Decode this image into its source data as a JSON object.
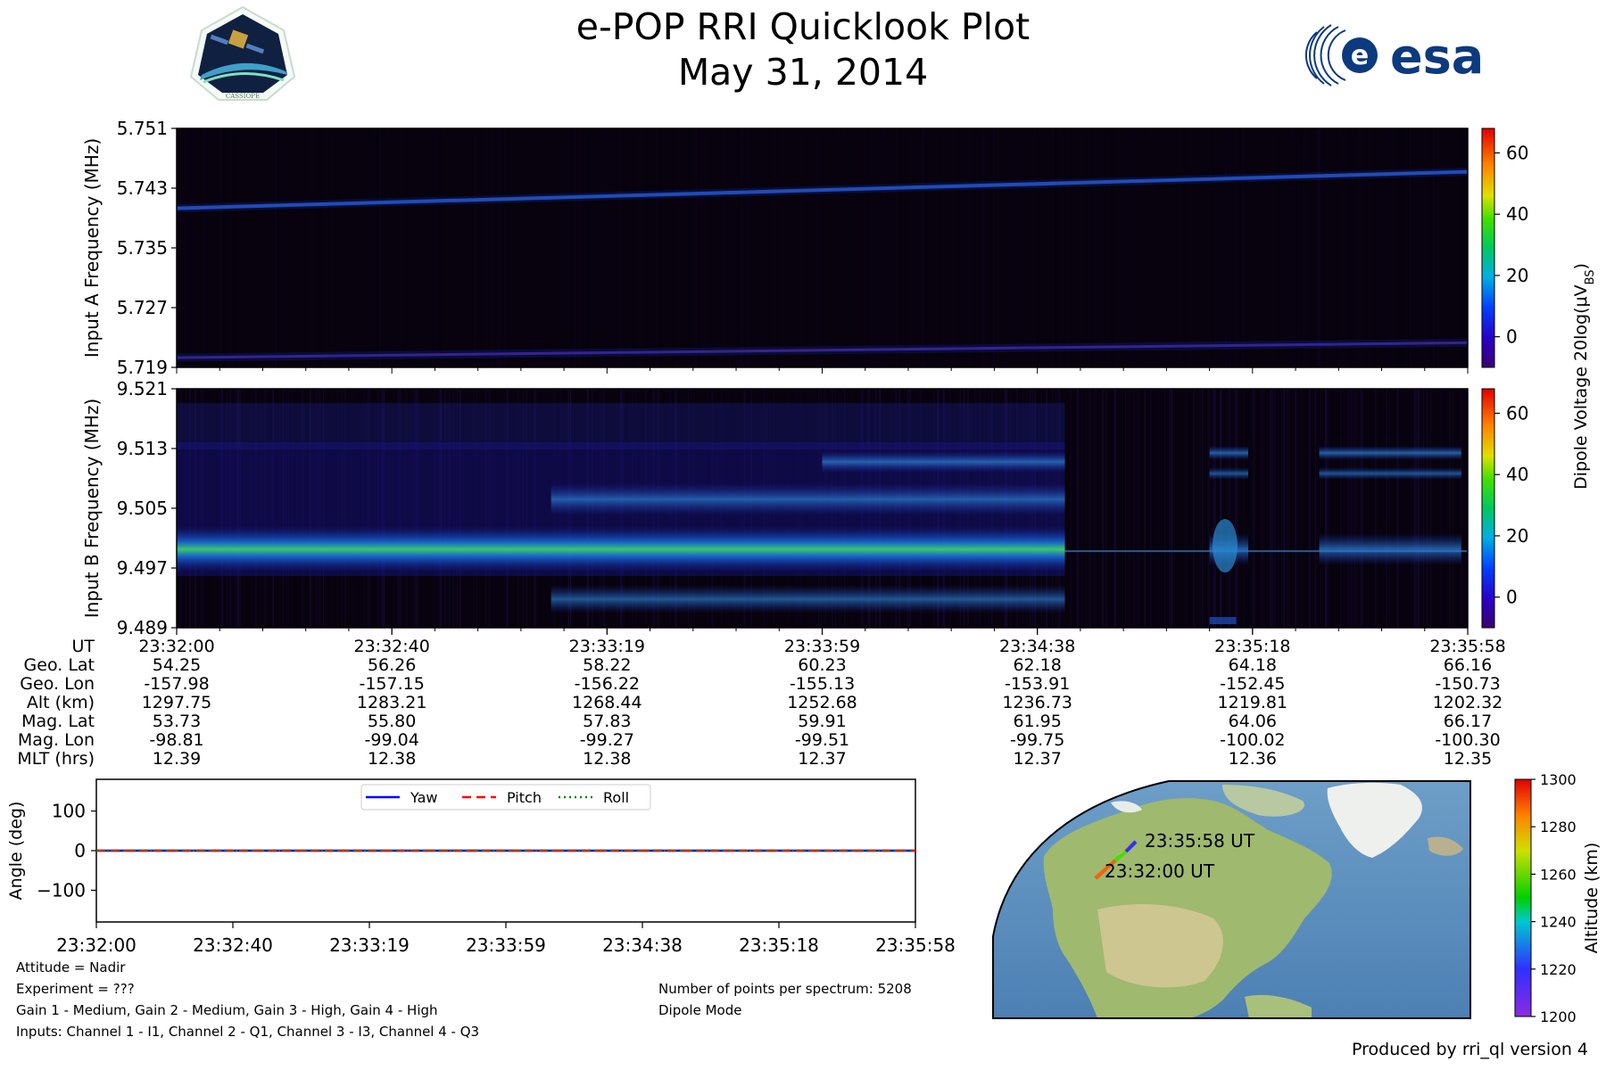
{
  "header": {
    "title": "e-POP RRI Quicklook Plot",
    "date": "May 31, 2014",
    "left_logo_text": "CASSIOPE",
    "right_logo_text": "esa"
  },
  "colorbar": {
    "label": "Dipole Voltage 20log(μV",
    "label_sub": "BS",
    "label_end": ")",
    "ticks": [
      0,
      20,
      40,
      60
    ],
    "range": [
      -10,
      68
    ]
  },
  "chart_data": [
    {
      "type": "heatmap",
      "ylabel": "Input A Frequency (MHz)",
      "yticks": [
        "5.751",
        "5.743",
        "5.735",
        "5.727",
        "5.719"
      ],
      "ylim": [
        5.719,
        5.751
      ],
      "value_range": [
        -10,
        68
      ],
      "features": [
        {
          "kind": "line",
          "from": [
            0,
            5.7403
          ],
          "to": [
            1,
            5.7452
          ],
          "level": 12
        },
        {
          "kind": "line",
          "from": [
            0,
            5.7203
          ],
          "to": [
            1,
            5.7223
          ],
          "level": 3
        }
      ]
    },
    {
      "type": "heatmap",
      "ylabel": "Input B Frequency (MHz)",
      "yticks": [
        "9.521",
        "9.513",
        "9.505",
        "9.497",
        "9.489"
      ],
      "ylim": [
        9.489,
        9.521
      ],
      "value_range": [
        -10,
        68
      ],
      "features": [
        {
          "kind": "band",
          "center": 9.4995,
          "level": 22
        }
      ]
    },
    {
      "type": "line",
      "ylabel": "Angle (deg)",
      "yticks": [
        "100",
        "0",
        "−100"
      ],
      "ylim": [
        -180,
        180
      ],
      "x": [
        "23:32:00",
        "23:32:40",
        "23:33:19",
        "23:33:59",
        "23:34:38",
        "23:35:18",
        "23:35:58"
      ],
      "series": [
        {
          "name": "Yaw",
          "color": "#0000ff",
          "style": "solid",
          "values": [
            0,
            0,
            0,
            0,
            0,
            0,
            0
          ]
        },
        {
          "name": "Pitch",
          "color": "#ff0000",
          "style": "dashed",
          "values": [
            0,
            0,
            0,
            0,
            0,
            0,
            0
          ]
        },
        {
          "name": "Roll",
          "color": "#008000",
          "style": "dotted",
          "values": [
            0,
            0,
            0,
            0,
            0,
            0,
            0
          ]
        }
      ],
      "legend_position": "top-center"
    }
  ],
  "ephemeris": {
    "labels": [
      "UT",
      "Geo. Lat",
      "Geo. Lon",
      "Alt (km)",
      "Mag. Lat",
      "Mag. Lon",
      "MLT (hrs)"
    ],
    "columns": [
      [
        "23:32:00",
        "54.25",
        "-157.98",
        "1297.75",
        "53.73",
        "-98.81",
        "12.39"
      ],
      [
        "23:32:40",
        "56.26",
        "-157.15",
        "1283.21",
        "55.80",
        "-99.04",
        "12.38"
      ],
      [
        "23:33:19",
        "58.22",
        "-156.22",
        "1268.44",
        "57.83",
        "-99.27",
        "12.38"
      ],
      [
        "23:33:59",
        "60.23",
        "-155.13",
        "1252.68",
        "59.91",
        "-99.51",
        "12.37"
      ],
      [
        "23:34:38",
        "62.18",
        "-153.91",
        "1236.73",
        "61.95",
        "-99.75",
        "12.37"
      ],
      [
        "23:35:18",
        "64.18",
        "-152.45",
        "1219.81",
        "64.06",
        "-100.02",
        "12.36"
      ],
      [
        "23:35:58",
        "66.16",
        "-150.73",
        "1202.32",
        "66.17",
        "-100.30",
        "12.35"
      ]
    ]
  },
  "map": {
    "start_label": "23:32:00 UT",
    "end_label": "23:35:58 UT",
    "colorbar_label": "Altitude (km)",
    "colorbar_ticks": [
      1200,
      1220,
      1240,
      1260,
      1280,
      1300
    ],
    "range": [
      1200,
      1300
    ]
  },
  "notes": {
    "attitude": "Attitude = Nadir",
    "experiment": "Experiment = ???",
    "gains": "Gain 1 - Medium, Gain 2 - Medium, Gain 3 - High, Gain 4 - High",
    "inputs": "Inputs: Channel 1 - I1, Channel 2 - Q1, Channel 3 - I3, Channel 4 - Q3",
    "points": "Number of points per spectrum: 5208",
    "mode": "Dipole Mode",
    "produced_by": "Produced by rri_ql version 4"
  }
}
